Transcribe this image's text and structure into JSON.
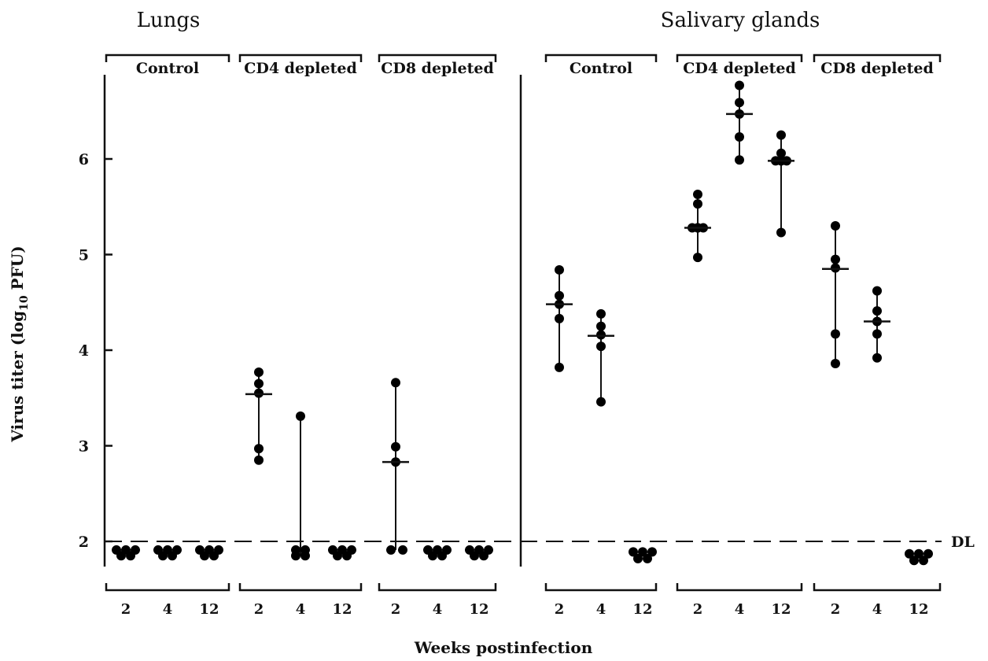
{
  "chart_data": {
    "type": "scatter",
    "ylabel_main": "Virus titer (log",
    "ylabel_sub": "10",
    "ylabel_tail": " PFU)",
    "xlabel": "Weeks postinfection",
    "ylim": [
      1.7,
      6.9
    ],
    "yticks": [
      "2",
      "3",
      "4",
      "5",
      "6"
    ],
    "detection_limit": {
      "value": 2.0,
      "label": "DL"
    },
    "panels": [
      {
        "title": "Lungs",
        "groups": [
          {
            "name": "Control",
            "weeks": [
              {
                "week": "2",
                "points": [
                  1.91,
                  1.91,
                  1.91,
                  1.85,
                  1.85
                ],
                "bar": null
              },
              {
                "week": "4",
                "points": [
                  1.91,
                  1.91,
                  1.91,
                  1.85,
                  1.85
                ],
                "bar": null
              },
              {
                "week": "12",
                "points": [
                  1.91,
                  1.91,
                  1.91,
                  1.85,
                  1.85
                ],
                "bar": null
              }
            ]
          },
          {
            "name": "CD4  depleted",
            "weeks": [
              {
                "week": "2",
                "points": [
                  3.77,
                  3.65,
                  3.55,
                  2.97,
                  2.85
                ],
                "bar": 3.54
              },
              {
                "week": "4",
                "points": [
                  3.31,
                  1.91,
                  1.91,
                  1.85,
                  1.85
                ],
                "bar": null
              },
              {
                "week": "12",
                "points": [
                  1.91,
                  1.91,
                  1.91,
                  1.85,
                  1.85
                ],
                "bar": null
              }
            ]
          },
          {
            "name": "CD8  depleted",
            "weeks": [
              {
                "week": "2",
                "points": [
                  3.66,
                  2.99,
                  2.83,
                  1.91,
                  1.91
                ],
                "bar": 2.83
              },
              {
                "week": "4",
                "points": [
                  1.91,
                  1.91,
                  1.91,
                  1.85,
                  1.85
                ],
                "bar": null
              },
              {
                "week": "12",
                "points": [
                  1.91,
                  1.91,
                  1.91,
                  1.85,
                  1.85
                ],
                "bar": null
              }
            ]
          }
        ]
      },
      {
        "title": "Salivary glands",
        "groups": [
          {
            "name": "Control",
            "weeks": [
              {
                "week": "2",
                "points": [
                  4.84,
                  4.57,
                  4.48,
                  4.33,
                  3.82
                ],
                "bar": 4.48
              },
              {
                "week": "4",
                "points": [
                  4.38,
                  4.25,
                  4.16,
                  4.04,
                  3.46
                ],
                "bar": 4.15
              },
              {
                "week": "12",
                "points": [
                  1.89,
                  1.89,
                  1.89,
                  1.82,
                  1.82
                ],
                "bar": null
              }
            ]
          },
          {
            "name": "CD4  depleted",
            "weeks": [
              {
                "week": "2",
                "points": [
                  5.63,
                  5.53,
                  5.28,
                  5.28,
                  4.97
                ],
                "bar": 5.28
              },
              {
                "week": "4",
                "points": [
                  6.77,
                  6.59,
                  6.47,
                  6.23,
                  5.99
                ],
                "bar": 6.47
              },
              {
                "week": "12",
                "points": [
                  6.25,
                  6.06,
                  5.98,
                  5.98,
                  5.23
                ],
                "bar": 5.98
              }
            ]
          },
          {
            "name": "CD8  depleted",
            "weeks": [
              {
                "week": "2",
                "points": [
                  5.3,
                  4.95,
                  4.86,
                  4.17,
                  3.86
                ],
                "bar": 4.85
              },
              {
                "week": "4",
                "points": [
                  4.62,
                  4.41,
                  4.3,
                  4.17,
                  3.92
                ],
                "bar": 4.3
              },
              {
                "week": "12",
                "points": [
                  1.87,
                  1.87,
                  1.87,
                  1.8,
                  1.8
                ],
                "bar": null
              }
            ]
          }
        ]
      }
    ]
  }
}
